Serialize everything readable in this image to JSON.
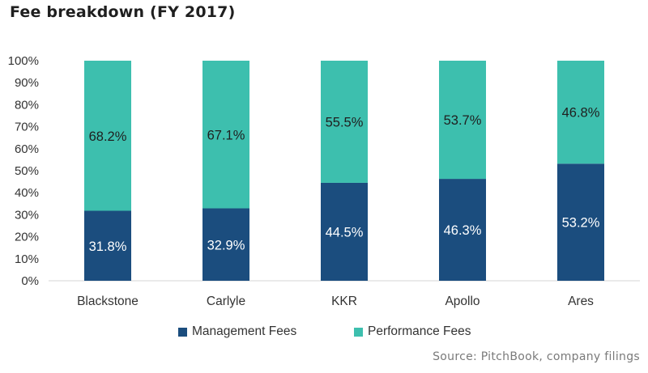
{
  "title": "Fee breakdown (FY 2017)",
  "source": "Source: PitchBook, company filings",
  "colors": {
    "management": "#1b4d7e",
    "performance": "#3dbfae"
  },
  "chart_data": {
    "type": "bar",
    "stacked": true,
    "categories": [
      "Blackstone",
      "Carlyle",
      "KKR",
      "Apollo",
      "Ares"
    ],
    "series": [
      {
        "name": "Management Fees",
        "values": [
          31.8,
          32.9,
          44.5,
          46.3,
          53.2
        ],
        "labels": [
          "31.8%",
          "32.9%",
          "44.5%",
          "46.3%",
          "53.2%"
        ]
      },
      {
        "name": "Performance Fees",
        "values": [
          68.2,
          67.1,
          55.5,
          53.7,
          46.8
        ],
        "labels": [
          "68.2%",
          "67.1%",
          "55.5%",
          "53.7%",
          "46.8%"
        ]
      }
    ],
    "yticks": [
      "0%",
      "10%",
      "20%",
      "30%",
      "40%",
      "50%",
      "60%",
      "70%",
      "80%",
      "90%",
      "100%"
    ],
    "ylim": [
      0,
      100
    ],
    "grid": false,
    "legend": "bottom"
  }
}
